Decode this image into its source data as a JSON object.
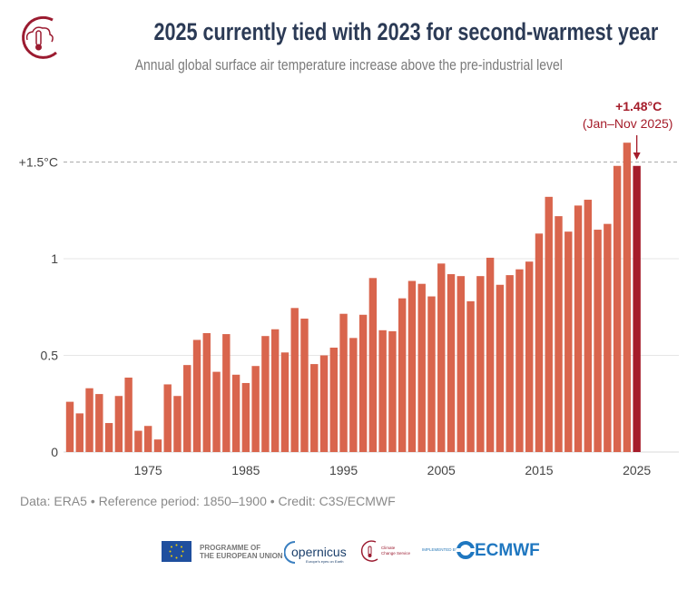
{
  "header": {
    "title": "2025 currently tied with 2023 for second-warmest year",
    "subtitle": "Annual global surface air temperature increase above the pre-industrial level"
  },
  "footer": {
    "note": "Data: ERA5 • Reference period: 1850–1900 • Credit: C3S/ECMWF",
    "logos": {
      "eu_line1": "PROGRAMME OF",
      "eu_line2": "THE EUROPEAN UNION",
      "copernicus": "opernicus",
      "copernicus_tagline": "Europe's eyes on Earth",
      "c3s_line1": "Climate",
      "c3s_line2": "Change Service",
      "implemented_by": "IMPLEMENTED BY",
      "ecmwf": "ECMWF"
    }
  },
  "colors": {
    "bar": "#d9654d",
    "highlight": "#a51c2a",
    "title": "#2b3a55"
  },
  "chart_data": {
    "type": "bar",
    "title": "2025 currently tied with 2023 for second-warmest year",
    "subtitle": "Annual global surface air temperature increase above the pre-industrial level",
    "xlabel": "",
    "ylabel": "",
    "ylim": [
      0,
      1.7
    ],
    "yticks": [
      {
        "value": 0,
        "label": "0"
      },
      {
        "value": 0.5,
        "label": "0.5"
      },
      {
        "value": 1,
        "label": "1"
      },
      {
        "value": 1.5,
        "label": "+1.5°C"
      }
    ],
    "xticks": [
      1975,
      1985,
      1995,
      2005,
      2015,
      2025
    ],
    "grid": true,
    "reference_line": {
      "value": 1.5,
      "style": "dashed"
    },
    "annotation": {
      "year": 2025,
      "value_label": "+1.48°C",
      "period_label": "(Jan–Nov 2025)"
    },
    "highlight_year": 2025,
    "categories": [
      1967,
      1968,
      1969,
      1970,
      1971,
      1972,
      1973,
      1974,
      1975,
      1976,
      1977,
      1978,
      1979,
      1980,
      1981,
      1982,
      1983,
      1984,
      1985,
      1986,
      1987,
      1988,
      1989,
      1990,
      1991,
      1992,
      1993,
      1994,
      1995,
      1996,
      1997,
      1998,
      1999,
      2000,
      2001,
      2002,
      2003,
      2004,
      2005,
      2006,
      2007,
      2008,
      2009,
      2010,
      2011,
      2012,
      2013,
      2014,
      2015,
      2016,
      2017,
      2018,
      2019,
      2020,
      2021,
      2022,
      2023,
      2024,
      2025
    ],
    "values": [
      0.26,
      0.2,
      0.33,
      0.3,
      0.15,
      0.29,
      0.385,
      0.11,
      0.135,
      0.065,
      0.35,
      0.29,
      0.45,
      0.58,
      0.615,
      0.415,
      0.61,
      0.4,
      0.357,
      0.445,
      0.6,
      0.635,
      0.515,
      0.745,
      0.69,
      0.455,
      0.5,
      0.54,
      0.715,
      0.59,
      0.71,
      0.9,
      0.63,
      0.625,
      0.795,
      0.885,
      0.87,
      0.805,
      0.975,
      0.92,
      0.91,
      0.78,
      0.91,
      1.005,
      0.865,
      0.915,
      0.945,
      0.985,
      1.13,
      1.32,
      1.22,
      1.14,
      1.275,
      1.305,
      1.15,
      1.18,
      1.48,
      1.6,
      1.48
    ]
  }
}
